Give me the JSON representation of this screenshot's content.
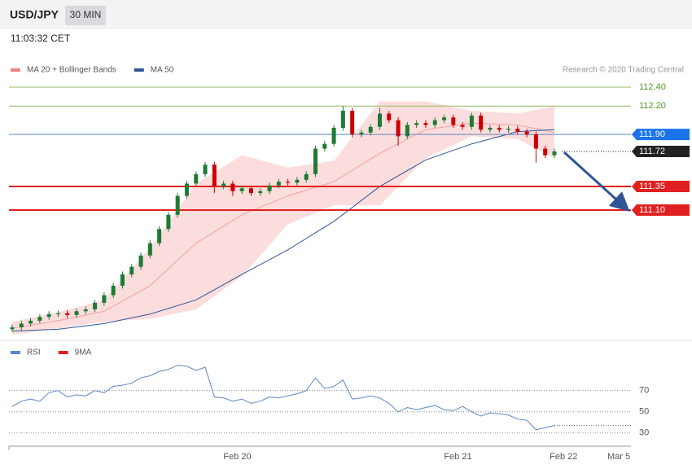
{
  "header": {
    "symbol": "USD/JPY",
    "interval": "30 MIN",
    "time": "11:03:32 CET"
  },
  "credit": "Research © 2020 Trading Central",
  "chart_data": [
    {
      "type": "candlestick",
      "legend": [
        {
          "name": "MA 20 + Bollinger Bands",
          "color": "#f08080"
        },
        {
          "name": "MA 50",
          "color": "#2f5597"
        }
      ],
      "xlim": [
        0,
        66
      ],
      "ylim": [
        109.8,
        112.55
      ],
      "open": [
        109.84,
        109.86,
        109.9,
        109.93,
        109.97,
        110.0,
        110.01,
        109.99,
        110.03,
        110.05,
        110.12,
        110.2,
        110.3,
        110.42,
        110.5,
        110.62,
        110.75,
        110.9,
        111.05,
        111.25,
        111.38,
        111.48,
        111.58,
        111.35,
        111.38,
        111.3,
        111.33,
        111.28,
        111.3,
        111.36,
        111.4,
        111.39,
        111.42,
        111.48,
        111.75,
        111.8,
        111.97,
        112.15,
        111.9,
        111.92,
        111.98,
        112.12,
        112.05,
        111.88,
        112.0,
        112.02,
        112.0,
        112.05,
        112.08,
        112.0,
        111.98,
        112.1,
        111.95,
        111.97,
        111.95,
        111.96,
        111.93,
        111.9,
        111.75,
        111.68
      ],
      "high": [
        109.89,
        109.93,
        109.96,
        110.0,
        110.03,
        110.04,
        110.04,
        110.06,
        110.08,
        110.15,
        110.23,
        110.33,
        110.45,
        110.53,
        110.65,
        110.78,
        110.93,
        111.08,
        111.28,
        111.41,
        111.51,
        111.61,
        111.61,
        111.41,
        111.41,
        111.36,
        111.36,
        111.33,
        111.39,
        111.43,
        111.43,
        111.45,
        111.51,
        111.78,
        111.83,
        112.0,
        112.2,
        112.18,
        111.95,
        112.01,
        112.18,
        112.15,
        112.08,
        112.03,
        112.05,
        112.05,
        112.08,
        112.11,
        112.11,
        112.03,
        112.13,
        112.13,
        112.0,
        112.0,
        111.99,
        111.99,
        111.96,
        111.93,
        111.78,
        111.75
      ],
      "low": [
        109.81,
        109.83,
        109.87,
        109.9,
        109.94,
        109.97,
        109.96,
        109.96,
        110.0,
        110.02,
        110.09,
        110.17,
        110.27,
        110.39,
        110.47,
        110.59,
        110.72,
        110.87,
        111.02,
        111.22,
        111.35,
        111.45,
        111.28,
        111.32,
        111.25,
        111.27,
        111.25,
        111.25,
        111.27,
        111.33,
        111.36,
        111.36,
        111.39,
        111.45,
        111.72,
        111.77,
        111.94,
        111.87,
        111.87,
        111.89,
        111.95,
        112.02,
        111.78,
        111.85,
        111.97,
        111.97,
        111.97,
        112.02,
        111.97,
        111.95,
        111.95,
        111.92,
        111.92,
        111.92,
        111.92,
        111.9,
        111.87,
        111.6,
        111.65,
        111.65
      ],
      "close": [
        109.86,
        109.9,
        109.93,
        109.97,
        110.0,
        110.01,
        109.99,
        110.03,
        110.05,
        110.12,
        110.2,
        110.3,
        110.42,
        110.5,
        110.62,
        110.75,
        110.9,
        111.05,
        111.25,
        111.38,
        111.48,
        111.58,
        111.35,
        111.38,
        111.3,
        111.33,
        111.28,
        111.3,
        111.36,
        111.4,
        111.39,
        111.42,
        111.48,
        111.75,
        111.8,
        111.97,
        112.15,
        111.9,
        111.92,
        111.98,
        112.12,
        112.05,
        111.88,
        112.0,
        112.02,
        112.0,
        112.05,
        112.08,
        112.0,
        111.98,
        112.1,
        111.95,
        111.97,
        111.95,
        111.96,
        111.93,
        111.9,
        111.75,
        111.68,
        111.72
      ],
      "up_color": "#1e7b34",
      "down_color": "#cc0000",
      "band": {
        "color": "#fbd5d5",
        "x": [
          0,
          5,
          10,
          15,
          20,
          25,
          30,
          35,
          40,
          45,
          50,
          55,
          59
        ],
        "upper": [
          109.92,
          110.02,
          110.15,
          110.7,
          111.38,
          111.68,
          111.55,
          111.62,
          112.25,
          112.25,
          112.15,
          112.12,
          112.2
        ],
        "lower": [
          109.78,
          109.85,
          109.92,
          109.95,
          110.05,
          110.4,
          110.95,
          111.15,
          111.15,
          111.65,
          111.88,
          111.85,
          111.65
        ]
      },
      "lines": [
        {
          "color": "#f4a0a0",
          "x": [
            0,
            5,
            10,
            15,
            20,
            25,
            30,
            35,
            40,
            45,
            50,
            55,
            59
          ],
          "values": [
            109.85,
            109.93,
            110.03,
            110.3,
            110.75,
            111.05,
            111.25,
            111.4,
            111.7,
            111.95,
            112.02,
            112.0,
            111.92
          ]
        },
        {
          "color": "#2f5597",
          "x": [
            0,
            5,
            10,
            15,
            20,
            25,
            30,
            35,
            40,
            45,
            50,
            55,
            59
          ],
          "values": [
            109.82,
            109.84,
            109.9,
            110.0,
            110.15,
            110.42,
            110.68,
            110.98,
            111.35,
            111.63,
            111.8,
            111.93,
            111.95
          ]
        }
      ],
      "levels": [
        {
          "value": 112.4,
          "label": "112.40",
          "color": "#8fbc5a",
          "text_color": "#4d9a1a",
          "box": false,
          "dotted": false
        },
        {
          "value": 112.2,
          "label": "112.20",
          "color": "#8fbc5a",
          "text_color": "#4d9a1a",
          "box": false,
          "dotted": false
        },
        {
          "value": 111.9,
          "label": "111.90",
          "color": "#5b86c8",
          "text_color": "#ffffff",
          "box": "#1a73e8",
          "dotted": false
        },
        {
          "value": 111.72,
          "label": "111.72",
          "color": "#333333",
          "text_color": "#ffffff",
          "box": "#222222",
          "dotted": true
        },
        {
          "value": 111.35,
          "label": "111.35",
          "color": "#e02020",
          "text_color": "#ffffff",
          "box": "#e02020",
          "dotted": false
        },
        {
          "value": 111.1,
          "label": "111.10",
          "color": "#e02020",
          "text_color": "#ffffff",
          "box": "#e02020",
          "dotted": false
        }
      ]
    },
    {
      "type": "line",
      "legend": [
        {
          "name": "RSI",
          "color": "#5b86c8"
        },
        {
          "name": "9MA",
          "color": "#e02020"
        }
      ],
      "xlim": [
        0,
        66
      ],
      "ylim": [
        17.5,
        100.5
      ],
      "yticks": [
        70,
        50,
        30
      ],
      "xticks": [
        {
          "value": 24.5,
          "label": "Feb 20"
        },
        {
          "value": 48.5,
          "label": "Feb 21"
        },
        {
          "value": 60,
          "label": "Feb 22"
        },
        {
          "value": 66,
          "label": "Mar 5"
        }
      ],
      "series": [
        {
          "name": "RSI",
          "color": "#5b86c8",
          "values": [
            55,
            60,
            62,
            60,
            68,
            70,
            64,
            66,
            65,
            70,
            68,
            74,
            75,
            77,
            82,
            84,
            88,
            90,
            94,
            93,
            89,
            92,
            64,
            63,
            60,
            62,
            58,
            60,
            64,
            63,
            65,
            67,
            70,
            82,
            72,
            74,
            80,
            62,
            63,
            65,
            63,
            58,
            50,
            54,
            52,
            54,
            56,
            52,
            51,
            55,
            50,
            46,
            49,
            48,
            47,
            43,
            42,
            33,
            35,
            37
          ]
        }
      ]
    }
  ]
}
